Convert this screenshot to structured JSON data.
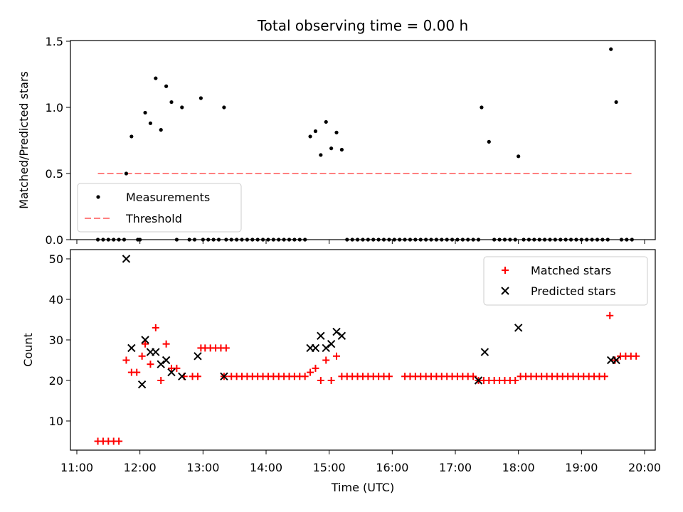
{
  "chart_data": [
    {
      "type": "scatter",
      "title": "Total observing time = 0.00 h",
      "xlabel": "",
      "ylabel": "Matched/Predicted stars",
      "xlim": [
        "11:00",
        "20:00"
      ],
      "ylim": [
        0,
        1.5
      ],
      "yticks": [
        "0.0",
        "0.5",
        "1.0",
        "1.5"
      ],
      "legend_position": "lower-left",
      "series": [
        {
          "name": "Measurements",
          "color": "#000000",
          "marker": "dot",
          "points": [
            [
              "11:20",
              0
            ],
            [
              "11:25",
              0
            ],
            [
              "11:30",
              0
            ],
            [
              "11:35",
              0
            ],
            [
              "11:40",
              0
            ],
            [
              "11:45",
              0
            ],
            [
              "11:47",
              0.5
            ],
            [
              "11:52",
              0.78
            ],
            [
              "11:58",
              0
            ],
            [
              "12:00",
              0
            ],
            [
              "12:05",
              0.96
            ],
            [
              "12:10",
              0.88
            ],
            [
              "12:15",
              1.22
            ],
            [
              "12:20",
              0.83
            ],
            [
              "12:25",
              1.16
            ],
            [
              "12:30",
              1.04
            ],
            [
              "12:35",
              0
            ],
            [
              "12:40",
              1.0
            ],
            [
              "12:47",
              0
            ],
            [
              "12:52",
              0
            ],
            [
              "12:58",
              1.07
            ],
            [
              "13:00",
              0
            ],
            [
              "13:05",
              0
            ],
            [
              "13:10",
              0
            ],
            [
              "13:15",
              0
            ],
            [
              "13:20",
              1.0
            ],
            [
              "13:22",
              0
            ],
            [
              "13:27",
              0
            ],
            [
              "13:32",
              0
            ],
            [
              "13:37",
              0
            ],
            [
              "13:42",
              0
            ],
            [
              "13:47",
              0
            ],
            [
              "13:52",
              0
            ],
            [
              "13:57",
              0
            ],
            [
              "14:02",
              0
            ],
            [
              "14:07",
              0
            ],
            [
              "14:12",
              0
            ],
            [
              "14:17",
              0
            ],
            [
              "14:22",
              0
            ],
            [
              "14:27",
              0
            ],
            [
              "14:32",
              0
            ],
            [
              "14:37",
              0
            ],
            [
              "14:42",
              0.78
            ],
            [
              "14:47",
              0.82
            ],
            [
              "14:52",
              0.64
            ],
            [
              "14:57",
              0.89
            ],
            [
              "15:02",
              0.69
            ],
            [
              "15:07",
              0.81
            ],
            [
              "15:12",
              0.68
            ],
            [
              "15:17",
              0
            ],
            [
              "15:22",
              0
            ],
            [
              "15:27",
              0
            ],
            [
              "15:32",
              0
            ],
            [
              "15:37",
              0
            ],
            [
              "15:42",
              0
            ],
            [
              "15:47",
              0
            ],
            [
              "15:52",
              0
            ],
            [
              "15:57",
              0
            ],
            [
              "16:02",
              0
            ],
            [
              "16:07",
              0
            ],
            [
              "16:12",
              0
            ],
            [
              "16:17",
              0
            ],
            [
              "16:22",
              0
            ],
            [
              "16:27",
              0
            ],
            [
              "16:32",
              0
            ],
            [
              "16:37",
              0
            ],
            [
              "16:42",
              0
            ],
            [
              "16:47",
              0
            ],
            [
              "16:52",
              0
            ],
            [
              "16:57",
              0
            ],
            [
              "17:02",
              0
            ],
            [
              "17:07",
              0
            ],
            [
              "17:12",
              0
            ],
            [
              "17:17",
              0
            ],
            [
              "17:22",
              0
            ],
            [
              "17:25",
              1.0
            ],
            [
              "17:32",
              0.74
            ],
            [
              "17:37",
              0
            ],
            [
              "17:42",
              0
            ],
            [
              "17:47",
              0
            ],
            [
              "17:52",
              0
            ],
            [
              "17:57",
              0
            ],
            [
              "18:00",
              0.63
            ],
            [
              "18:05",
              0
            ],
            [
              "18:10",
              0
            ],
            [
              "18:15",
              0
            ],
            [
              "18:20",
              0
            ],
            [
              "18:25",
              0
            ],
            [
              "18:30",
              0
            ],
            [
              "18:35",
              0
            ],
            [
              "18:40",
              0
            ],
            [
              "18:45",
              0
            ],
            [
              "18:50",
              0
            ],
            [
              "18:55",
              0
            ],
            [
              "19:00",
              0
            ],
            [
              "19:05",
              0
            ],
            [
              "19:10",
              0
            ],
            [
              "19:15",
              0
            ],
            [
              "19:20",
              0
            ],
            [
              "19:25",
              0
            ],
            [
              "19:28",
              1.44
            ],
            [
              "19:33",
              1.04
            ],
            [
              "19:38",
              0
            ],
            [
              "19:43",
              0
            ],
            [
              "19:48",
              0
            ]
          ]
        },
        {
          "name": "Threshold",
          "color": "#ff8080",
          "style": "dashed",
          "points": [
            [
              "11:20",
              0.5
            ],
            [
              "19:50",
              0.5
            ]
          ]
        }
      ]
    },
    {
      "type": "scatter",
      "title": "",
      "xlabel": "Time (UTC)",
      "ylabel": "Count",
      "xlim": [
        "11:00",
        "20:00"
      ],
      "ylim": [
        3,
        52
      ],
      "yticks": [
        "10",
        "20",
        "30",
        "40",
        "50"
      ],
      "xticks": [
        "11:00",
        "12:00",
        "13:00",
        "14:00",
        "15:00",
        "16:00",
        "17:00",
        "18:00",
        "19:00",
        "20:00"
      ],
      "legend_position": "upper-right",
      "series": [
        {
          "name": "Matched stars",
          "color": "#ff0000",
          "marker": "plus",
          "points": [
            [
              "11:20",
              5
            ],
            [
              "11:25",
              5
            ],
            [
              "11:30",
              5
            ],
            [
              "11:35",
              5
            ],
            [
              "11:40",
              5
            ],
            [
              "11:47",
              25
            ],
            [
              "11:52",
              22
            ],
            [
              "11:57",
              22
            ],
            [
              "12:02",
              26
            ],
            [
              "12:05",
              29
            ],
            [
              "12:10",
              24
            ],
            [
              "12:15",
              33
            ],
            [
              "12:20",
              20
            ],
            [
              "12:25",
              29
            ],
            [
              "12:30",
              23
            ],
            [
              "12:35",
              23
            ],
            [
              "12:42",
              21
            ],
            [
              "12:50",
              21
            ],
            [
              "12:55",
              21
            ],
            [
              "12:58",
              28
            ],
            [
              "13:02",
              28
            ],
            [
              "13:07",
              28
            ],
            [
              "13:12",
              28
            ],
            [
              "13:17",
              28
            ],
            [
              "13:22",
              28
            ],
            [
              "13:20",
              21
            ],
            [
              "13:27",
              21
            ],
            [
              "13:32",
              21
            ],
            [
              "13:37",
              21
            ],
            [
              "13:42",
              21
            ],
            [
              "13:47",
              21
            ],
            [
              "13:52",
              21
            ],
            [
              "13:57",
              21
            ],
            [
              "14:02",
              21
            ],
            [
              "14:07",
              21
            ],
            [
              "14:12",
              21
            ],
            [
              "14:17",
              21
            ],
            [
              "14:22",
              21
            ],
            [
              "14:27",
              21
            ],
            [
              "14:32",
              21
            ],
            [
              "14:37",
              21
            ],
            [
              "14:42",
              22
            ],
            [
              "14:47",
              23
            ],
            [
              "14:52",
              20
            ],
            [
              "14:57",
              25
            ],
            [
              "15:02",
              20
            ],
            [
              "15:07",
              26
            ],
            [
              "15:12",
              21
            ],
            [
              "15:17",
              21
            ],
            [
              "15:22",
              21
            ],
            [
              "15:27",
              21
            ],
            [
              "15:32",
              21
            ],
            [
              "15:37",
              21
            ],
            [
              "15:42",
              21
            ],
            [
              "15:47",
              21
            ],
            [
              "15:52",
              21
            ],
            [
              "15:57",
              21
            ],
            [
              "16:12",
              21
            ],
            [
              "16:17",
              21
            ],
            [
              "16:22",
              21
            ],
            [
              "16:27",
              21
            ],
            [
              "16:32",
              21
            ],
            [
              "16:37",
              21
            ],
            [
              "16:42",
              21
            ],
            [
              "16:47",
              21
            ],
            [
              "16:52",
              21
            ],
            [
              "16:57",
              21
            ],
            [
              "17:02",
              21
            ],
            [
              "17:07",
              21
            ],
            [
              "17:12",
              21
            ],
            [
              "17:17",
              21
            ],
            [
              "17:22",
              20
            ],
            [
              "17:27",
              20
            ],
            [
              "17:32",
              20
            ],
            [
              "17:37",
              20
            ],
            [
              "17:42",
              20
            ],
            [
              "17:47",
              20
            ],
            [
              "17:52",
              20
            ],
            [
              "17:57",
              20
            ],
            [
              "18:02",
              21
            ],
            [
              "18:07",
              21
            ],
            [
              "18:12",
              21
            ],
            [
              "18:17",
              21
            ],
            [
              "18:22",
              21
            ],
            [
              "18:27",
              21
            ],
            [
              "18:32",
              21
            ],
            [
              "18:37",
              21
            ],
            [
              "18:42",
              21
            ],
            [
              "18:47",
              21
            ],
            [
              "18:52",
              21
            ],
            [
              "18:57",
              21
            ],
            [
              "19:02",
              21
            ],
            [
              "19:07",
              21
            ],
            [
              "19:12",
              21
            ],
            [
              "19:17",
              21
            ],
            [
              "19:22",
              21
            ],
            [
              "19:27",
              36
            ],
            [
              "19:32",
              25
            ],
            [
              "19:37",
              26
            ],
            [
              "19:42",
              26
            ],
            [
              "19:47",
              26
            ],
            [
              "19:52",
              26
            ]
          ]
        },
        {
          "name": "Predicted stars",
          "color": "#000000",
          "marker": "cross",
          "points": [
            [
              "11:47",
              50
            ],
            [
              "11:52",
              28
            ],
            [
              "12:02",
              19
            ],
            [
              "12:05",
              30
            ],
            [
              "12:10",
              27
            ],
            [
              "12:15",
              27
            ],
            [
              "12:20",
              24
            ],
            [
              "12:25",
              25
            ],
            [
              "12:30",
              22
            ],
            [
              "12:40",
              21
            ],
            [
              "12:55",
              26
            ],
            [
              "13:20",
              21
            ],
            [
              "14:42",
              28
            ],
            [
              "14:47",
              28
            ],
            [
              "14:52",
              31
            ],
            [
              "14:57",
              28
            ],
            [
              "15:02",
              29
            ],
            [
              "15:07",
              32
            ],
            [
              "15:12",
              31
            ],
            [
              "17:22",
              20
            ],
            [
              "17:28",
              27
            ],
            [
              "18:00",
              33
            ],
            [
              "19:28",
              25
            ],
            [
              "19:33",
              25
            ]
          ]
        }
      ]
    }
  ]
}
